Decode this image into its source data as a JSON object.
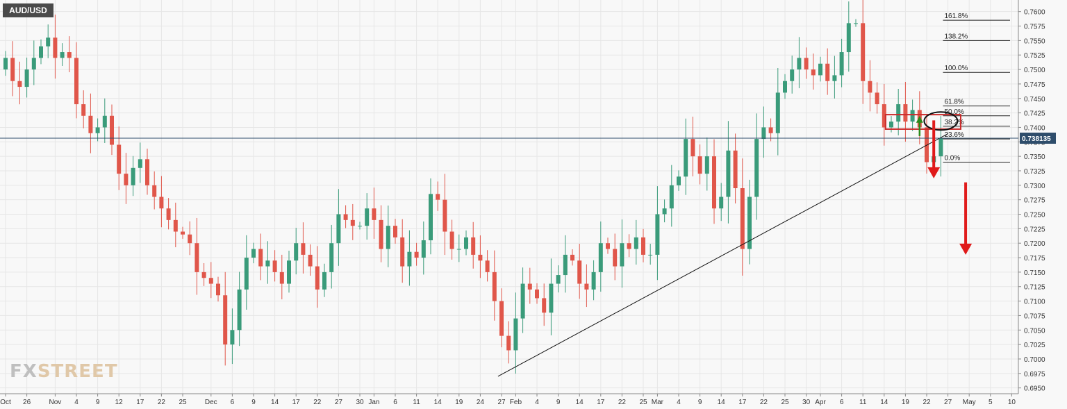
{
  "symbol": "AUD/USD",
  "watermark": {
    "part1": "FX",
    "part2": "STREET"
  },
  "colors": {
    "up": "#3a9b7a",
    "down": "#e0564a",
    "grid": "#e6e6e6",
    "price_tag": "#2e4d6b",
    "box": "#cc2b2b",
    "arrow_up": "#2a8a1a",
    "arrow_down": "#e01a1a"
  },
  "chart_data": {
    "type": "candlestick",
    "title": "AUD/USD",
    "ylim": [
      0.694,
      0.762
    ],
    "y_ticks": [
      "0.6950",
      "0.6975",
      "0.7000",
      "0.7025",
      "0.7050",
      "0.7075",
      "0.7100",
      "0.7125",
      "0.7150",
      "0.7175",
      "0.7200",
      "0.7225",
      "0.7250",
      "0.7275",
      "0.7300",
      "0.7325",
      "0.7350",
      "0.7375",
      "0.7400",
      "0.7425",
      "0.7450",
      "0.7475",
      "0.7500",
      "0.7525",
      "0.7550",
      "0.7575",
      "0.7600"
    ],
    "x_ticks": [
      {
        "label": "Oct",
        "i": 0
      },
      {
        "label": "26",
        "i": 3
      },
      {
        "label": "Nov",
        "i": 7
      },
      {
        "label": "4",
        "i": 10
      },
      {
        "label": "9",
        "i": 13
      },
      {
        "label": "12",
        "i": 16
      },
      {
        "label": "17",
        "i": 19
      },
      {
        "label": "22",
        "i": 22
      },
      {
        "label": "25",
        "i": 25
      },
      {
        "label": "Dec",
        "i": 29
      },
      {
        "label": "6",
        "i": 32
      },
      {
        "label": "9",
        "i": 35
      },
      {
        "label": "14",
        "i": 38
      },
      {
        "label": "17",
        "i": 41
      },
      {
        "label": "22",
        "i": 44
      },
      {
        "label": "27",
        "i": 47
      },
      {
        "label": "30",
        "i": 50
      },
      {
        "label": "Jan",
        "i": 52
      },
      {
        "label": "6",
        "i": 55
      },
      {
        "label": "11",
        "i": 58
      },
      {
        "label": "14",
        "i": 61
      },
      {
        "label": "19",
        "i": 64
      },
      {
        "label": "24",
        "i": 67
      },
      {
        "label": "27",
        "i": 70
      },
      {
        "label": "Feb",
        "i": 72
      },
      {
        "label": "4",
        "i": 75
      },
      {
        "label": "9",
        "i": 78
      },
      {
        "label": "14",
        "i": 81
      },
      {
        "label": "17",
        "i": 84
      },
      {
        "label": "22",
        "i": 87
      },
      {
        "label": "25",
        "i": 90
      },
      {
        "label": "Mar",
        "i": 92
      },
      {
        "label": "4",
        "i": 95
      },
      {
        "label": "9",
        "i": 98
      },
      {
        "label": "14",
        "i": 101
      },
      {
        "label": "17",
        "i": 104
      },
      {
        "label": "22",
        "i": 107
      },
      {
        "label": "25",
        "i": 110
      },
      {
        "label": "30",
        "i": 113
      },
      {
        "label": "Apr",
        "i": 115
      },
      {
        "label": "6",
        "i": 118
      },
      {
        "label": "11",
        "i": 121
      },
      {
        "label": "14",
        "i": 124
      },
      {
        "label": "19",
        "i": 127
      },
      {
        "label": "22",
        "i": 130
      },
      {
        "label": "27",
        "i": 133
      },
      {
        "label": "May",
        "i": 136
      },
      {
        "label": "5",
        "i": 139
      },
      {
        "label": "10",
        "i": 142
      }
    ],
    "closes": [
      0.752,
      0.748,
      0.747,
      0.75,
      0.752,
      0.754,
      0.7555,
      0.752,
      0.753,
      0.752,
      0.744,
      0.742,
      0.739,
      0.74,
      0.742,
      0.737,
      0.732,
      0.73,
      0.733,
      0.7345,
      0.73,
      0.728,
      0.726,
      0.724,
      0.722,
      0.7215,
      0.72,
      0.715,
      0.714,
      0.713,
      0.711,
      0.7025,
      0.705,
      0.712,
      0.7175,
      0.719,
      0.716,
      0.717,
      0.715,
      0.713,
      0.717,
      0.72,
      0.718,
      0.716,
      0.712,
      0.715,
      0.72,
      0.725,
      0.724,
      0.723,
      0.723,
      0.726,
      0.724,
      0.719,
      0.723,
      0.721,
      0.716,
      0.7185,
      0.7175,
      0.7205,
      0.7285,
      0.7275,
      0.722,
      0.719,
      0.719,
      0.721,
      0.718,
      0.717,
      0.715,
      0.71,
      0.704,
      0.7015,
      0.707,
      0.713,
      0.712,
      0.7105,
      0.708,
      0.713,
      0.7145,
      0.718,
      0.717,
      0.713,
      0.712,
      0.715,
      0.72,
      0.719,
      0.716,
      0.72,
      0.719,
      0.721,
      0.718,
      0.718,
      0.725,
      0.726,
      0.73,
      0.7315,
      0.738,
      0.735,
      0.732,
      0.735,
      0.726,
      0.728,
      0.736,
      0.7295,
      0.719,
      0.728,
      0.738,
      0.74,
      0.739,
      0.746,
      0.748,
      0.75,
      0.752,
      0.75,
      0.749,
      0.751,
      0.748,
      0.749,
      0.753,
      0.758,
      0.758,
      0.748,
      0.746,
      0.744,
      0.74,
      0.741,
      0.744,
      0.741,
      0.743,
      0.74,
      0.734,
      0.735,
      0.7381
    ],
    "fib_levels": [
      {
        "label": "161.8%",
        "value": 0.7585
      },
      {
        "label": "138.2%",
        "value": 0.755
      },
      {
        "label": "100.0%",
        "value": 0.7495
      },
      {
        "label": "61.8%",
        "value": 0.7437
      },
      {
        "label": "50.0%",
        "value": 0.742
      },
      {
        "label": "38.2%",
        "value": 0.7402
      },
      {
        "label": "23.6%",
        "value": 0.738
      },
      {
        "label": "0.0%",
        "value": 0.734
      }
    ],
    "current_price": {
      "label": "0.738135",
      "value": 0.738135
    },
    "trendline": {
      "from": {
        "i": 69.5,
        "value": 0.697
      },
      "to": {
        "i": 133,
        "value": 0.7389
      }
    },
    "resistance_box": {
      "i_start": 124.2,
      "i_end": 134.8,
      "y_top": 0.7422,
      "y_bottom": 0.7397
    },
    "ellipse": {
      "i": 132,
      "value": 0.7411
    },
    "arrows": [
      {
        "dir": "up",
        "i": 129,
        "from": 0.7385,
        "to": 0.742
      },
      {
        "dir": "down",
        "i": 131,
        "from": 0.7412,
        "to": 0.7312
      },
      {
        "dir": "down",
        "i": 135.5,
        "from": 0.7305,
        "to": 0.718
      }
    ]
  }
}
